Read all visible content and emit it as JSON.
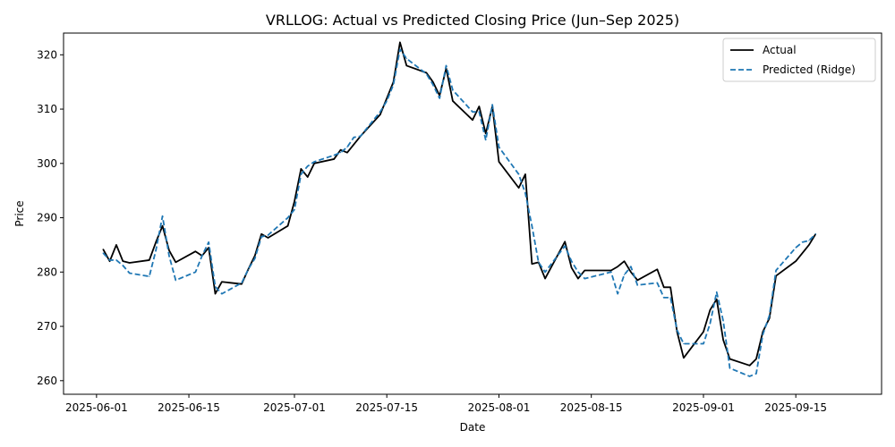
{
  "chart_data": {
    "type": "line",
    "title": "VRLLOG: Actual vs Predicted Closing Price (Jun–Sep 2025)",
    "xlabel": "Date",
    "ylabel": "Price",
    "xlim": [
      "2025-05-27",
      "2025-09-28"
    ],
    "ylim": [
      257.5,
      324
    ],
    "x_ticks": [
      "2025-06-01",
      "2025-06-15",
      "2025-07-01",
      "2025-07-15",
      "2025-08-01",
      "2025-08-15",
      "2025-09-01",
      "2025-09-15"
    ],
    "y_ticks": [
      260,
      270,
      280,
      290,
      300,
      310,
      320
    ],
    "grid": false,
    "legend_position": "top-right",
    "series": [
      {
        "name": "Actual",
        "color": "#000000",
        "style": "solid",
        "points": [
          [
            "2025-06-02",
            284.2
          ],
          [
            "2025-06-03",
            282.0
          ],
          [
            "2025-06-04",
            285.0
          ],
          [
            "2025-06-05",
            282.0
          ],
          [
            "2025-06-06",
            281.7
          ],
          [
            "2025-06-09",
            282.2
          ],
          [
            "2025-06-10",
            285.5
          ],
          [
            "2025-06-11",
            288.5
          ],
          [
            "2025-06-12",
            284.0
          ],
          [
            "2025-06-13",
            281.8
          ],
          [
            "2025-06-16",
            283.8
          ],
          [
            "2025-06-17",
            283.0
          ],
          [
            "2025-06-18",
            284.5
          ],
          [
            "2025-06-19",
            276.0
          ],
          [
            "2025-06-20",
            278.2
          ],
          [
            "2025-06-23",
            277.8
          ],
          [
            "2025-06-24",
            280.5
          ],
          [
            "2025-06-25",
            283.0
          ],
          [
            "2025-06-26",
            287.0
          ],
          [
            "2025-06-27",
            286.3
          ],
          [
            "2025-06-30",
            288.5
          ],
          [
            "2025-07-01",
            293.0
          ],
          [
            "2025-07-02",
            299.0
          ],
          [
            "2025-07-03",
            297.5
          ],
          [
            "2025-07-04",
            300.0
          ],
          [
            "2025-07-07",
            300.8
          ],
          [
            "2025-07-08",
            302.5
          ],
          [
            "2025-07-09",
            302.0
          ],
          [
            "2025-07-10",
            303.5
          ],
          [
            "2025-07-11",
            305.0
          ],
          [
            "2025-07-14",
            309.0
          ],
          [
            "2025-07-15",
            312.0
          ],
          [
            "2025-07-16",
            315.0
          ],
          [
            "2025-07-17",
            322.3
          ],
          [
            "2025-07-18",
            318.0
          ],
          [
            "2025-07-21",
            316.7
          ],
          [
            "2025-07-22",
            315.0
          ],
          [
            "2025-07-23",
            312.5
          ],
          [
            "2025-07-24",
            317.5
          ],
          [
            "2025-07-25",
            311.5
          ],
          [
            "2025-07-28",
            308.0
          ],
          [
            "2025-07-29",
            310.5
          ],
          [
            "2025-07-30",
            305.5
          ],
          [
            "2025-07-31",
            310.5
          ],
          [
            "2025-08-01",
            300.3
          ],
          [
            "2025-08-04",
            295.5
          ],
          [
            "2025-08-05",
            298.0
          ],
          [
            "2025-08-06",
            281.5
          ],
          [
            "2025-08-07",
            281.8
          ],
          [
            "2025-08-08",
            278.8
          ],
          [
            "2025-08-11",
            285.6
          ],
          [
            "2025-08-12",
            280.8
          ],
          [
            "2025-08-13",
            278.8
          ],
          [
            "2025-08-14",
            280.3
          ],
          [
            "2025-08-18",
            280.3
          ],
          [
            "2025-08-19",
            281.0
          ],
          [
            "2025-08-20",
            282.0
          ],
          [
            "2025-08-21",
            280.0
          ],
          [
            "2025-08-22",
            278.5
          ],
          [
            "2025-08-25",
            280.5
          ],
          [
            "2025-08-26",
            277.2
          ],
          [
            "2025-08-27",
            277.2
          ],
          [
            "2025-08-28",
            269.0
          ],
          [
            "2025-08-29",
            264.2
          ],
          [
            "2025-09-01",
            269.0
          ],
          [
            "2025-09-02",
            273.0
          ],
          [
            "2025-09-03",
            275.0
          ],
          [
            "2025-09-04",
            267.5
          ],
          [
            "2025-09-05",
            264.0
          ],
          [
            "2025-09-08",
            262.8
          ],
          [
            "2025-09-09",
            264.0
          ],
          [
            "2025-09-10",
            269.0
          ],
          [
            "2025-09-11",
            271.5
          ],
          [
            "2025-09-12",
            279.3
          ],
          [
            "2025-09-15",
            282.0
          ],
          [
            "2025-09-16",
            283.5
          ],
          [
            "2025-09-17",
            285.0
          ],
          [
            "2025-09-18",
            287.0
          ]
        ]
      },
      {
        "name": "Predicted (Ridge)",
        "color": "#1f77b4",
        "style": "dashed",
        "points": [
          [
            "2025-06-02",
            283.5
          ],
          [
            "2025-06-03",
            282.2
          ],
          [
            "2025-06-04",
            282.2
          ],
          [
            "2025-06-05",
            281.2
          ],
          [
            "2025-06-06",
            279.8
          ],
          [
            "2025-06-09",
            279.2
          ],
          [
            "2025-06-10",
            284.0
          ],
          [
            "2025-06-11",
            290.3
          ],
          [
            "2025-06-12",
            283.0
          ],
          [
            "2025-06-13",
            278.5
          ],
          [
            "2025-06-16",
            280.0
          ],
          [
            "2025-06-17",
            283.0
          ],
          [
            "2025-06-18",
            285.5
          ],
          [
            "2025-06-19",
            277.3
          ],
          [
            "2025-06-20",
            276.0
          ],
          [
            "2025-06-23",
            278.0
          ],
          [
            "2025-06-24",
            280.5
          ],
          [
            "2025-06-25",
            282.5
          ],
          [
            "2025-06-26",
            286.5
          ],
          [
            "2025-06-27",
            286.8
          ],
          [
            "2025-06-30",
            290.0
          ],
          [
            "2025-07-01",
            291.5
          ],
          [
            "2025-07-02",
            298.0
          ],
          [
            "2025-07-03",
            299.5
          ],
          [
            "2025-07-04",
            300.3
          ],
          [
            "2025-07-07",
            301.5
          ],
          [
            "2025-07-08",
            302.0
          ],
          [
            "2025-07-09",
            303.0
          ],
          [
            "2025-07-10",
            304.8
          ],
          [
            "2025-07-11",
            305.0
          ],
          [
            "2025-07-14",
            309.5
          ],
          [
            "2025-07-15",
            311.5
          ],
          [
            "2025-07-16",
            314.5
          ],
          [
            "2025-07-17",
            321.0
          ],
          [
            "2025-07-18",
            319.3
          ],
          [
            "2025-07-21",
            316.5
          ],
          [
            "2025-07-22",
            314.5
          ],
          [
            "2025-07-23",
            312.0
          ],
          [
            "2025-07-24",
            318.0
          ],
          [
            "2025-07-25",
            313.5
          ],
          [
            "2025-07-28",
            309.5
          ],
          [
            "2025-07-29",
            309.5
          ],
          [
            "2025-07-30",
            304.3
          ],
          [
            "2025-07-31",
            310.8
          ],
          [
            "2025-08-01",
            303.0
          ],
          [
            "2025-08-04",
            298.0
          ],
          [
            "2025-08-05",
            294.5
          ],
          [
            "2025-08-06",
            288.5
          ],
          [
            "2025-08-07",
            281.8
          ],
          [
            "2025-08-08",
            280.0
          ],
          [
            "2025-08-11",
            284.8
          ],
          [
            "2025-08-12",
            282.0
          ],
          [
            "2025-08-13",
            280.0
          ],
          [
            "2025-08-14",
            278.8
          ],
          [
            "2025-08-18",
            280.0
          ],
          [
            "2025-08-19",
            276.0
          ],
          [
            "2025-08-20",
            279.5
          ],
          [
            "2025-08-21",
            281.0
          ],
          [
            "2025-08-22",
            277.6
          ],
          [
            "2025-08-25",
            278.0
          ],
          [
            "2025-08-26",
            275.3
          ],
          [
            "2025-08-27",
            275.3
          ],
          [
            "2025-08-28",
            269.3
          ],
          [
            "2025-08-29",
            266.8
          ],
          [
            "2025-09-01",
            266.8
          ],
          [
            "2025-09-02",
            270.5
          ],
          [
            "2025-09-03",
            276.3
          ],
          [
            "2025-09-04",
            271.0
          ],
          [
            "2025-09-05",
            262.3
          ],
          [
            "2025-09-08",
            260.8
          ],
          [
            "2025-09-09",
            261.3
          ],
          [
            "2025-09-10",
            268.5
          ],
          [
            "2025-09-11",
            272.0
          ],
          [
            "2025-09-12",
            280.3
          ],
          [
            "2025-09-15",
            284.5
          ],
          [
            "2025-09-16",
            285.5
          ],
          [
            "2025-09-17",
            285.8
          ],
          [
            "2025-09-18",
            287.0
          ]
        ]
      }
    ]
  }
}
